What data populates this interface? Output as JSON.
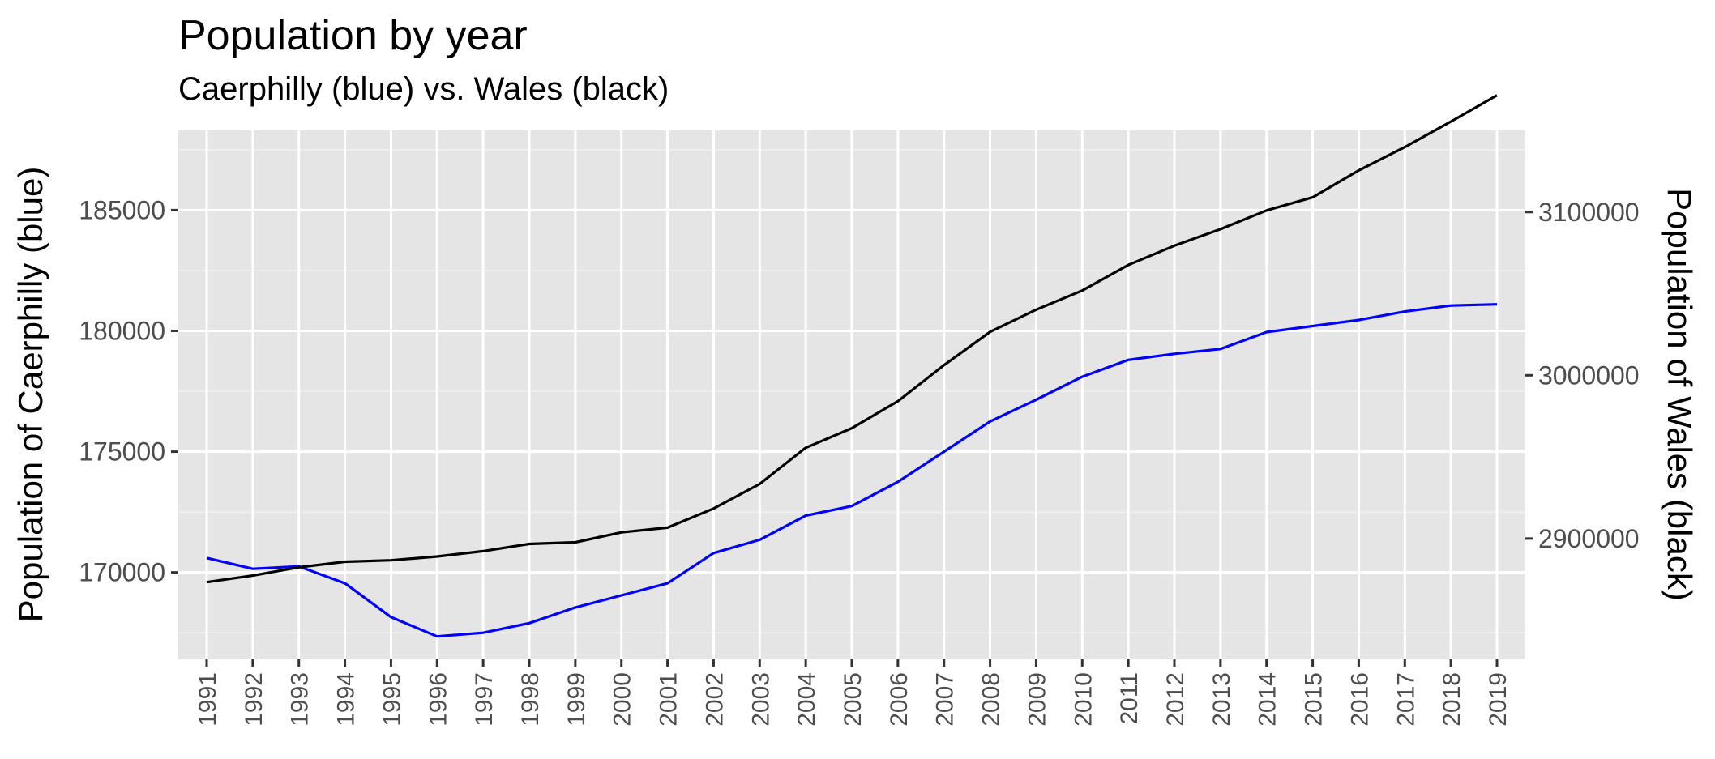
{
  "chart_data": {
    "type": "line",
    "title": "Population by year",
    "subtitle": "Caerphilly (blue) vs. Wales (black)",
    "ylabel_left": "Population of Caerphilly  (blue)",
    "ylabel_right": "Population of Wales (black)",
    "x": [
      "1991",
      "1992",
      "1993",
      "1994",
      "1995",
      "1996",
      "1997",
      "1998",
      "1999",
      "2000",
      "2001",
      "2002",
      "2003",
      "2004",
      "2005",
      "2006",
      "2007",
      "2008",
      "2009",
      "2010",
      "2011",
      "2012",
      "2013",
      "2014",
      "2015",
      "2016",
      "2017",
      "2018",
      "2019"
    ],
    "y_left_ticks": [
      "170000",
      "175000",
      "180000",
      "185000"
    ],
    "y_right_ticks": [
      "2900000",
      "3000000",
      "3100000"
    ],
    "ylim_left": [
      166400,
      188300
    ],
    "ylim_right": [
      2826000,
      3150000
    ],
    "grid": true,
    "series": [
      {
        "name": "Caerphilly",
        "axis": "left",
        "color": "#0000ff",
        "values": [
          170600,
          170150,
          170250,
          169550,
          168150,
          167350,
          167500,
          167900,
          168550,
          169050,
          169550,
          170800,
          171350,
          172350,
          172750,
          173750,
          175000,
          176250,
          177150,
          178100,
          178800,
          179050,
          179250,
          179950,
          180200,
          180450,
          180800,
          181050,
          181100
        ]
      },
      {
        "name": "Wales",
        "axis": "right",
        "color": "#000000",
        "values": [
          2873300,
          2877300,
          2882400,
          2885800,
          2886700,
          2889000,
          2892300,
          2896700,
          2897700,
          2903800,
          2906700,
          2918400,
          2933400,
          2955600,
          2967600,
          2984200,
          3006200,
          3026600,
          3040200,
          3051900,
          3067600,
          3079400,
          3089500,
          3101000,
          3109000,
          3125500,
          3139800,
          3155400,
          3171500
        ]
      }
    ]
  }
}
